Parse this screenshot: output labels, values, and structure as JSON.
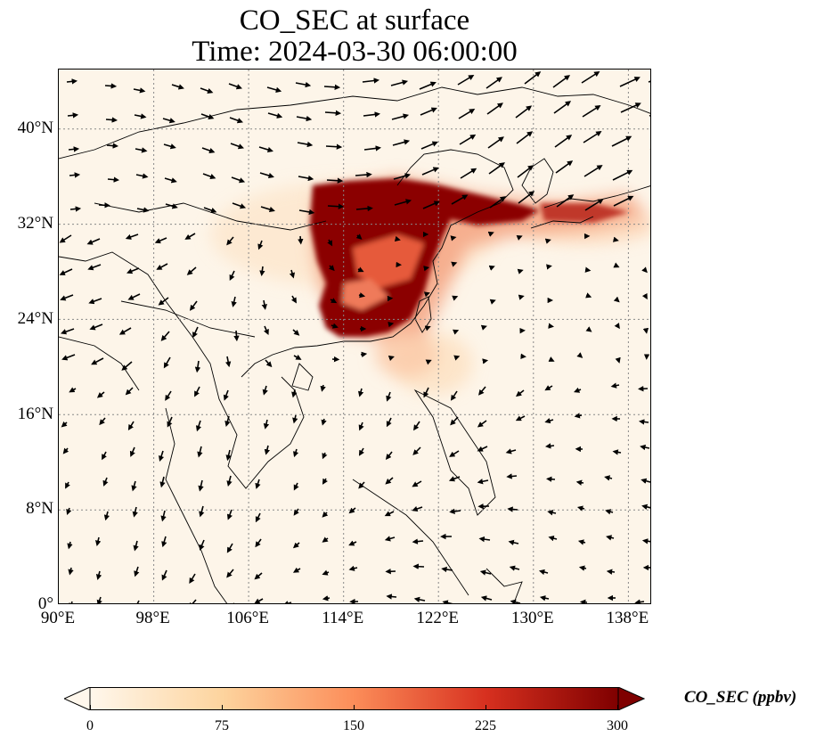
{
  "title": {
    "line1": "CO_SEC at surface",
    "line2": "Time: 2024-03-30 06:00:00"
  },
  "map": {
    "lon_range": [
      90,
      140
    ],
    "lat_range": [
      0,
      45
    ],
    "grid": "dotted",
    "x_ticks": [
      "90°E",
      "98°E",
      "106°E",
      "114°E",
      "122°E",
      "130°E",
      "138°E"
    ],
    "y_ticks": [
      "0°",
      "8°N",
      "16°N",
      "24°N",
      "32°N",
      "40°N"
    ],
    "field": "CO_SEC",
    "vectors": "wind",
    "background_color": "#fdf5e9"
  },
  "colorbar": {
    "label": "CO_SEC (ppbv)",
    "ticks": [
      "0",
      "75",
      "150",
      "225",
      "300"
    ],
    "range": [
      0,
      300
    ],
    "extend": "both",
    "colormap": "OrRd",
    "colors": [
      "#fff7ec",
      "#fdd49e",
      "#fc8d59",
      "#d7301f",
      "#7f0000"
    ]
  }
}
